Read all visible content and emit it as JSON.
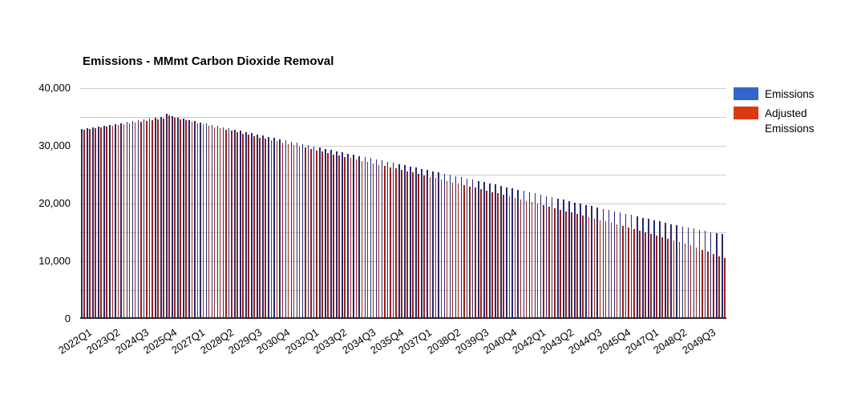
{
  "chart_data": {
    "type": "bar",
    "title": "Emissions - MMmt Carbon Dioxide Removal",
    "ylim": [
      0,
      40000
    ],
    "grid_step": 5000,
    "grid": true,
    "legend_position": "right",
    "xtick_every": 5,
    "yticks": [
      {
        "value": 0,
        "label": "0"
      },
      {
        "value": 10000,
        "label": "10,000"
      },
      {
        "value": 20000,
        "label": "20,000"
      },
      {
        "value": 30000,
        "label": "30,000"
      },
      {
        "value": 40000,
        "label": "40,000"
      }
    ],
    "xtick_labels_visible": [
      "2022Q1",
      "2023Q2",
      "2024Q3",
      "2025Q4",
      "2027Q1",
      "2028Q2",
      "2029Q3",
      "2030Q4",
      "2032Q1",
      "2033Q2",
      "2034Q3",
      "2035Q4",
      "2037Q1",
      "2038Q2",
      "2039Q3",
      "2040Q4",
      "2042Q1",
      "2043Q2",
      "2044Q3",
      "2045Q4",
      "2047Q1",
      "2048Q2",
      "2049Q3"
    ],
    "categories": [
      "2022Q1",
      "2022Q2",
      "2022Q3",
      "2022Q4",
      "2023Q1",
      "2023Q2",
      "2023Q3",
      "2023Q4",
      "2024Q1",
      "2024Q2",
      "2024Q3",
      "2024Q4",
      "2025Q1",
      "2025Q2",
      "2025Q3",
      "2025Q4",
      "2026Q1",
      "2026Q2",
      "2026Q3",
      "2026Q4",
      "2027Q1",
      "2027Q2",
      "2027Q3",
      "2027Q4",
      "2028Q1",
      "2028Q2",
      "2028Q3",
      "2028Q4",
      "2029Q1",
      "2029Q2",
      "2029Q3",
      "2029Q4",
      "2030Q1",
      "2030Q2",
      "2030Q3",
      "2030Q4",
      "2031Q1",
      "2031Q2",
      "2031Q3",
      "2031Q4",
      "2032Q1",
      "2032Q2",
      "2032Q3",
      "2032Q4",
      "2033Q1",
      "2033Q2",
      "2033Q3",
      "2033Q4",
      "2034Q1",
      "2034Q2",
      "2034Q3",
      "2034Q4",
      "2035Q1",
      "2035Q2",
      "2035Q3",
      "2035Q4",
      "2036Q1",
      "2036Q2",
      "2036Q3",
      "2036Q4",
      "2037Q1",
      "2037Q2",
      "2037Q3",
      "2037Q4",
      "2038Q1",
      "2038Q2",
      "2038Q3",
      "2038Q4",
      "2039Q1",
      "2039Q2",
      "2039Q3",
      "2039Q4",
      "2040Q1",
      "2040Q2",
      "2040Q3",
      "2040Q4",
      "2041Q1",
      "2041Q2",
      "2041Q3",
      "2041Q4",
      "2042Q1",
      "2042Q2",
      "2042Q3",
      "2042Q4",
      "2043Q1",
      "2043Q2",
      "2043Q3",
      "2043Q4",
      "2044Q1",
      "2044Q2",
      "2044Q3",
      "2044Q4",
      "2045Q1",
      "2045Q2",
      "2045Q3",
      "2045Q4",
      "2046Q1",
      "2046Q2",
      "2046Q3",
      "2046Q4",
      "2047Q1",
      "2047Q2",
      "2047Q3",
      "2047Q4",
      "2048Q1",
      "2048Q2",
      "2048Q3",
      "2048Q4",
      "2049Q1",
      "2049Q2",
      "2049Q3",
      "2049Q4",
      "2050Q1",
      "2050Q2"
    ],
    "series": [
      {
        "name": "Emissions",
        "color": "#3366CC",
        "bar_color": "#2a2a70",
        "values": [
          32900,
          33050,
          33200,
          33350,
          33500,
          33650,
          33800,
          33950,
          34100,
          34250,
          34400,
          34550,
          34700,
          34850,
          35000,
          35500,
          35100,
          34890,
          34690,
          34480,
          34270,
          34060,
          33860,
          33650,
          33440,
          33240,
          33030,
          32820,
          32610,
          32410,
          32200,
          31990,
          31790,
          31580,
          31370,
          31160,
          30960,
          30750,
          30540,
          30340,
          30130,
          29920,
          29710,
          29510,
          29300,
          29090,
          28890,
          28680,
          28470,
          28260,
          28060,
          27850,
          27640,
          27440,
          27230,
          27020,
          26810,
          26610,
          26400,
          26190,
          25990,
          25780,
          25570,
          25360,
          25160,
          24950,
          24740,
          24540,
          24330,
          24120,
          23910,
          23710,
          23500,
          23280,
          23060,
          22840,
          22620,
          22400,
          22180,
          21960,
          21740,
          21520,
          21290,
          21070,
          20850,
          20630,
          20410,
          20190,
          19970,
          19750,
          19530,
          19310,
          19090,
          18870,
          18650,
          18430,
          18210,
          17990,
          17770,
          17540,
          17320,
          17100,
          16880,
          16660,
          16440,
          16220,
          16000,
          15810,
          15630,
          15440,
          15260,
          15070,
          14890,
          14700
        ]
      },
      {
        "name": "Adjusted Emissions",
        "color": "#DC3912",
        "bar_color": "#99201a",
        "values": [
          32800,
          32940,
          33080,
          33220,
          33360,
          33500,
          33640,
          33780,
          33920,
          34060,
          34200,
          34340,
          34480,
          34620,
          34760,
          35250,
          34830,
          34600,
          34390,
          34160,
          33930,
          33700,
          33490,
          33260,
          33030,
          32810,
          32580,
          32360,
          32130,
          31910,
          31680,
          31450,
          31240,
          31010,
          30780,
          30550,
          30340,
          30110,
          29880,
          29660,
          29430,
          29210,
          28980,
          28760,
          28530,
          28300,
          28090,
          27860,
          27630,
          27400,
          27190,
          26960,
          26730,
          26510,
          26280,
          26060,
          25830,
          25610,
          25370,
          25120,
          24890,
          24650,
          24400,
          24160,
          23930,
          23680,
          23440,
          23210,
          22960,
          22720,
          22480,
          22240,
          22000,
          21750,
          21490,
          21240,
          20980,
          20730,
          20470,
          20220,
          19960,
          19710,
          19440,
          19190,
          18930,
          18680,
          18420,
          18170,
          17910,
          17660,
          17400,
          17150,
          16890,
          16640,
          16390,
          16130,
          15860,
          15580,
          15310,
          15020,
          14750,
          14470,
          14200,
          13920,
          13650,
          13380,
          13100,
          12720,
          12360,
          11980,
          11620,
          11240,
          10880,
          10500
        ]
      }
    ]
  }
}
